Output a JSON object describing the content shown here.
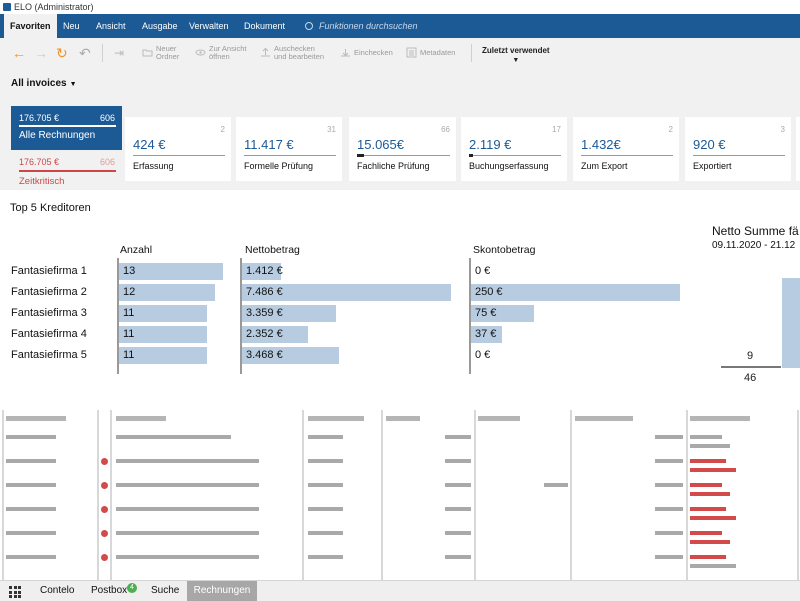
{
  "window": {
    "title": "ELO (Administrator)"
  },
  "ribbon": {
    "tabs": [
      "Favoriten",
      "Neu",
      "Ansicht",
      "Ausgabe",
      "Verwalten",
      "Dokument"
    ],
    "search_placeholder": "Funktionen durchsuchen"
  },
  "toolbar": {
    "new_folder": "Neuer\nOrdner",
    "open_view": "Zur Ansicht\nöffnen",
    "checkout": "Auschecken\nund bearbeiten",
    "checkin": "Einchecken",
    "metadata": "Metadaten",
    "recent": "Zuletzt verwendet"
  },
  "view_selector": "All invoices",
  "summary": {
    "all": {
      "amount": "176.705 €",
      "count": "606",
      "label": "Alle Rechnungen"
    },
    "critical": {
      "amount": "176.705 €",
      "count": "606",
      "label": "Zeitkritisch"
    }
  },
  "stages": [
    {
      "amount": "424 €",
      "count": "2",
      "label": "Erfassung",
      "progress": 0
    },
    {
      "amount": "11.417 €",
      "count": "31",
      "label": "Formelle Prüfung",
      "progress": 0
    },
    {
      "amount": "15.065€",
      "count": "66",
      "label": "Fachliche Prüfung",
      "progress": 0.08
    },
    {
      "amount": "2.119 €",
      "count": "17",
      "label": "Buchungserfassung",
      "progress": 0.04
    },
    {
      "amount": "1.432€",
      "count": "2",
      "label": "Zum Export",
      "progress": 0
    },
    {
      "amount": "920 €",
      "count": "3",
      "label": "Exportiert",
      "progress": 0
    }
  ],
  "top5": {
    "title": "Top 5 Kreditoren",
    "headers": {
      "count": "Anzahl",
      "net": "Nettobetrag",
      "discount": "Skontobetrag"
    },
    "rows": [
      {
        "name": "Fantasiefirma 1",
        "count": "13",
        "count_v": 13,
        "net": "1.412 €",
        "net_v": 1412,
        "disc": "0 €",
        "disc_v": 0
      },
      {
        "name": "Fantasiefirma 2",
        "count": "12",
        "count_v": 12,
        "net": "7.486 €",
        "net_v": 7486,
        "disc": "250 €",
        "disc_v": 250
      },
      {
        "name": "Fantasiefirma 3",
        "count": "11",
        "count_v": 11,
        "net": "3.359 €",
        "net_v": 3359,
        "disc": "75 €",
        "disc_v": 75
      },
      {
        "name": "Fantasiefirma 4",
        "count": "11",
        "count_v": 11,
        "net": "2.352 €",
        "net_v": 2352,
        "disc": "37 €",
        "disc_v": 37
      },
      {
        "name": "Fantasiefirma 5",
        "count": "11",
        "count_v": 11,
        "net": "3.468 €",
        "net_v": 3468,
        "disc": "0 €",
        "disc_v": 0
      }
    ]
  },
  "side_chart": {
    "title": "Netto Summe fä",
    "subtitle": "09.11.2020 - 21.12",
    "value_a": "9",
    "value_b": "46"
  },
  "bottom_tabs": {
    "items": [
      "Contelo",
      "Postbox",
      "Suche",
      "Rechnungen"
    ],
    "postbox_badge": "4"
  },
  "colors": {
    "brand": "#1c5a96",
    "critical": "#d04545",
    "bar": "#b7cce0"
  }
}
